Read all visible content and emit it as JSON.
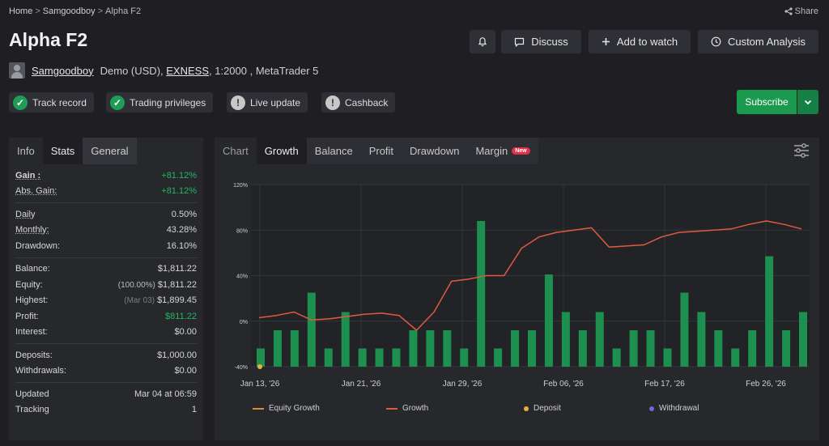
{
  "breadcrumb": {
    "home": "Home",
    "sep": ">",
    "user": "Samgoodboy",
    "current": "Alpha F2"
  },
  "share_label": "Share",
  "title": "Alpha F2",
  "header_buttons": {
    "discuss": "Discuss",
    "watch": "Add to watch",
    "analysis": "Custom Analysis"
  },
  "account": {
    "username": "Samgoodboy",
    "type": "Demo (USD),",
    "broker": "EXNESS",
    "details": ", 1:2000 , MetaTrader 5"
  },
  "badges": {
    "track": "Track record",
    "privileges": "Trading privileges",
    "live": "Live update",
    "cashback": "Cashback"
  },
  "subscribe_label": "Subscribe",
  "left_tabs": [
    "Info",
    "Stats",
    "General"
  ],
  "stats": {
    "gain": {
      "label": "Gain :",
      "value": "+81.12%"
    },
    "abs_gain": {
      "label": "Abs. Gain:",
      "value": "+81.12%"
    },
    "daily": {
      "label": "Daily",
      "value": "0.50%"
    },
    "monthly": {
      "label": "Monthly:",
      "value": "43.28%"
    },
    "drawdown": {
      "label": "Drawdown:",
      "value": "16.10%"
    },
    "balance": {
      "label": "Balance:",
      "value": "$1,811.22"
    },
    "equity": {
      "label": "Equity:",
      "note": "(100.00%)",
      "value": "$1,811.22"
    },
    "highest": {
      "label": "Highest:",
      "note": "(Mar 03)",
      "value": "$1,899.45"
    },
    "profit": {
      "label": "Profit:",
      "value": "$811.22"
    },
    "interest": {
      "label": "Interest:",
      "value": "$0.00"
    },
    "deposits": {
      "label": "Deposits:",
      "value": "$1,000.00"
    },
    "withdrawals": {
      "label": "Withdrawals:",
      "value": "$0.00"
    },
    "updated": {
      "label": "Updated",
      "value": "Mar 04 at 06:59"
    },
    "tracking": {
      "label": "Tracking",
      "value": "1"
    }
  },
  "chart_tabs": {
    "chart": "Chart",
    "growth": "Growth",
    "balance": "Balance",
    "profit": "Profit",
    "drawdown": "Drawdown",
    "margin": "Margin",
    "new_tag": "New"
  },
  "colors": {
    "bar": "#1d8f4e",
    "growth_line": "#e05a3f",
    "equity_line": "#d98b3a",
    "deposit": "#e8b13a",
    "withdrawal": "#6b6bd8"
  },
  "chart_data": {
    "type": "bar",
    "ylim": [
      -40,
      120
    ],
    "yticks": [
      "120%",
      "80%",
      "40%",
      "0%",
      "-40%"
    ],
    "xticks": [
      "Jan 13, '26",
      "Jan 21, '26",
      "Jan 29, '26",
      "Feb 06, '26",
      "Feb 17, '26",
      "Feb 26, '26"
    ],
    "bars": [
      -24,
      -8,
      -8,
      25,
      -24,
      8,
      -24,
      -24,
      -24,
      -8,
      -8,
      -8,
      -24,
      88,
      -24,
      -8,
      -8,
      41,
      8,
      -8,
      8,
      -24,
      -8,
      -8,
      -24,
      25,
      8,
      -8,
      -24,
      -8,
      57,
      -8,
      8
    ],
    "growth": [
      3,
      5,
      8,
      1,
      2,
      4,
      6,
      7,
      5,
      -8,
      8,
      35,
      37,
      40,
      40,
      64,
      74,
      78,
      80,
      82,
      65,
      66,
      67,
      74,
      78,
      79,
      80,
      81,
      85,
      88,
      85,
      81
    ],
    "legend": [
      "Equity Growth",
      "Growth",
      "Deposit",
      "Withdrawal"
    ]
  }
}
